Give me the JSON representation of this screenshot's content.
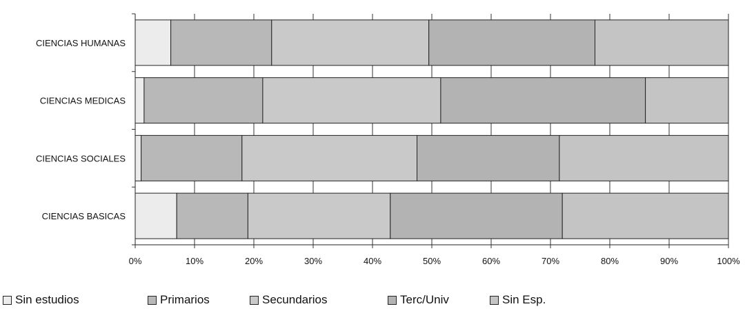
{
  "chart_data": {
    "type": "bar",
    "orientation": "horizontal",
    "stacked": "percent",
    "categories": [
      "CIENCIAS HUMANAS",
      "CIENCIAS MEDICAS",
      "CIENCIAS SOCIALES",
      "CIENCIAS BASICAS"
    ],
    "series": [
      {
        "name": "Sin estudios",
        "color": "#ececec",
        "values": [
          6.0,
          1.5,
          1.0,
          7.0
        ]
      },
      {
        "name": "Primarios",
        "color": "#b8b8b8",
        "values": [
          17.0,
          20.0,
          17.0,
          12.0
        ]
      },
      {
        "name": "Secundarios",
        "color": "#c9c9c9",
        "values": [
          26.5,
          30.0,
          29.5,
          24.0
        ]
      },
      {
        "name": "Terc/Univ",
        "color": "#b3b3b3",
        "values": [
          28.0,
          34.5,
          24.0,
          29.0
        ]
      },
      {
        "name": "Sin Esp.",
        "color": "#c4c4c4",
        "values": [
          22.5,
          14.0,
          28.5,
          28.0
        ]
      }
    ],
    "xlim": [
      0,
      100
    ],
    "x_ticks": [
      "0%",
      "10%",
      "20%",
      "30%",
      "40%",
      "50%",
      "60%",
      "70%",
      "80%",
      "90%",
      "100%"
    ],
    "legend": "bottom",
    "grid": true
  }
}
